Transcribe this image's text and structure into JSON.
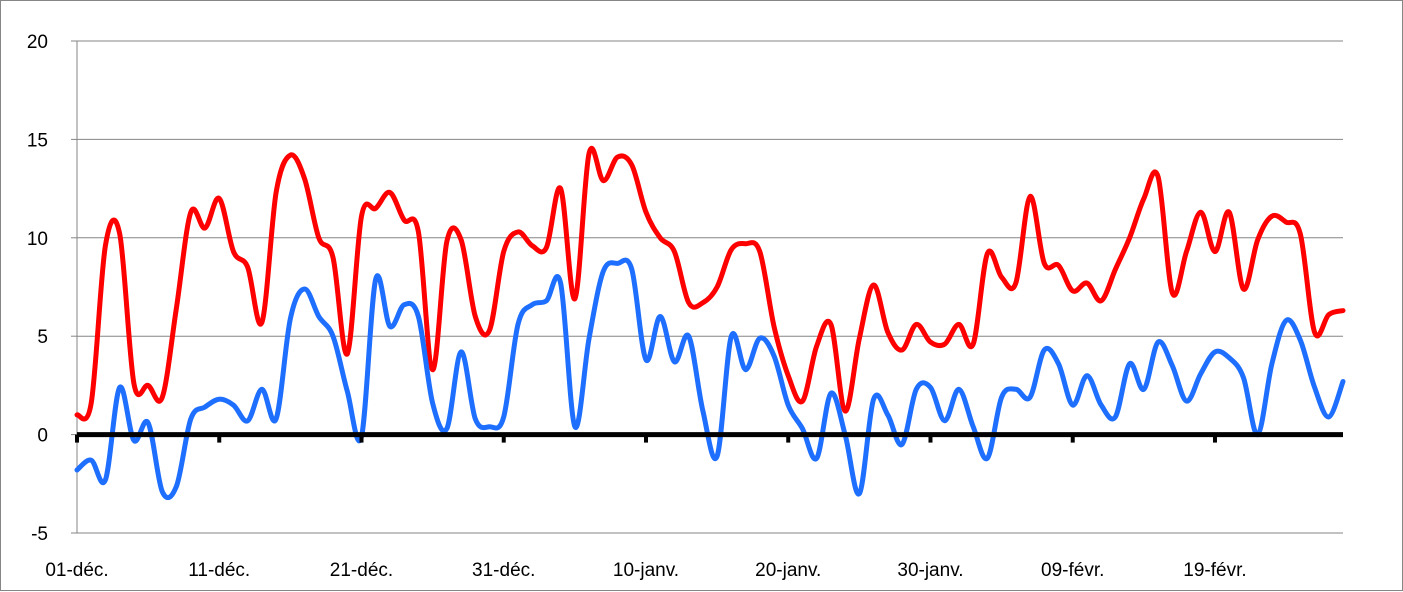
{
  "chart_data": {
    "type": "line",
    "title": "",
    "xlabel": "",
    "ylabel": "",
    "ylim": [
      -5,
      20
    ],
    "yticks": [
      -5,
      0,
      5,
      10,
      15,
      20
    ],
    "ytick_labels": [
      "-5",
      "0",
      "5",
      "10",
      "15",
      "20"
    ],
    "xtick_labels": [
      "01-déc.",
      "11-déc.",
      "21-déc.",
      "31-déc.",
      "10-janv.",
      "20-janv.",
      "30-janv.",
      "09-févr.",
      "19-févr."
    ],
    "x_start": "01-déc.",
    "n_points": 90,
    "grid": "horizontal",
    "legend": "none",
    "series": [
      {
        "color": "#FF0000",
        "values": [
          1.0,
          1.6,
          9.6,
          10.2,
          2.6,
          2.5,
          1.9,
          6.5,
          11.3,
          10.5,
          12.0,
          9.3,
          8.5,
          5.7,
          12.3,
          14.2,
          13.0,
          10.0,
          9.0,
          4.1,
          11.1,
          11.5,
          12.3,
          10.9,
          10.3,
          3.3,
          9.8,
          9.9,
          6.0,
          5.3,
          9.3,
          10.3,
          9.6,
          9.5,
          12.5,
          6.9,
          14.3,
          12.9,
          14.1,
          13.7,
          11.3,
          10.0,
          9.3,
          6.7,
          6.7,
          7.5,
          9.4,
          9.7,
          9.3,
          5.5,
          3.0,
          1.7,
          4.5,
          5.6,
          1.2,
          4.9,
          7.6,
          5.2,
          4.3,
          5.6,
          4.7,
          4.6,
          5.6,
          4.6,
          9.2,
          8.0,
          7.7,
          12.1,
          8.7,
          8.6,
          7.3,
          7.7,
          6.8,
          8.4,
          10.0,
          12.0,
          13.1,
          7.2,
          9.3,
          11.3,
          9.3,
          11.3,
          7.4,
          9.9,
          11.1,
          10.8,
          10.2,
          5.2,
          6.1,
          6.3
        ]
      },
      {
        "color": "#1E6FFF",
        "values": [
          -1.8,
          -1.3,
          -2.3,
          2.4,
          -0.3,
          0.6,
          -2.9,
          -2.6,
          0.8,
          1.4,
          1.8,
          1.5,
          0.7,
          2.3,
          0.8,
          5.9,
          7.4,
          6.0,
          5.0,
          2.2,
          -0.1,
          7.9,
          5.5,
          6.6,
          6.0,
          1.6,
          0.3,
          4.2,
          0.8,
          0.4,
          0.9,
          5.6,
          6.6,
          6.8,
          7.7,
          0.4,
          4.9,
          8.3,
          8.7,
          8.4,
          3.8,
          6.0,
          3.7,
          5.0,
          1.2,
          -1.1,
          5.0,
          3.3,
          4.9,
          4.0,
          1.5,
          0.3,
          -1.2,
          2.1,
          0.0,
          -3.0,
          1.8,
          1.0,
          -0.5,
          2.3,
          2.4,
          0.7,
          2.3,
          0.4,
          -1.2,
          1.9,
          2.3,
          1.9,
          4.3,
          3.6,
          1.5,
          3.0,
          1.5,
          0.9,
          3.6,
          2.3,
          4.7,
          3.5,
          1.7,
          3.1,
          4.2,
          3.9,
          2.9,
          0.0,
          3.6,
          5.8,
          4.8,
          2.4,
          0.9,
          2.7
        ]
      }
    ]
  }
}
